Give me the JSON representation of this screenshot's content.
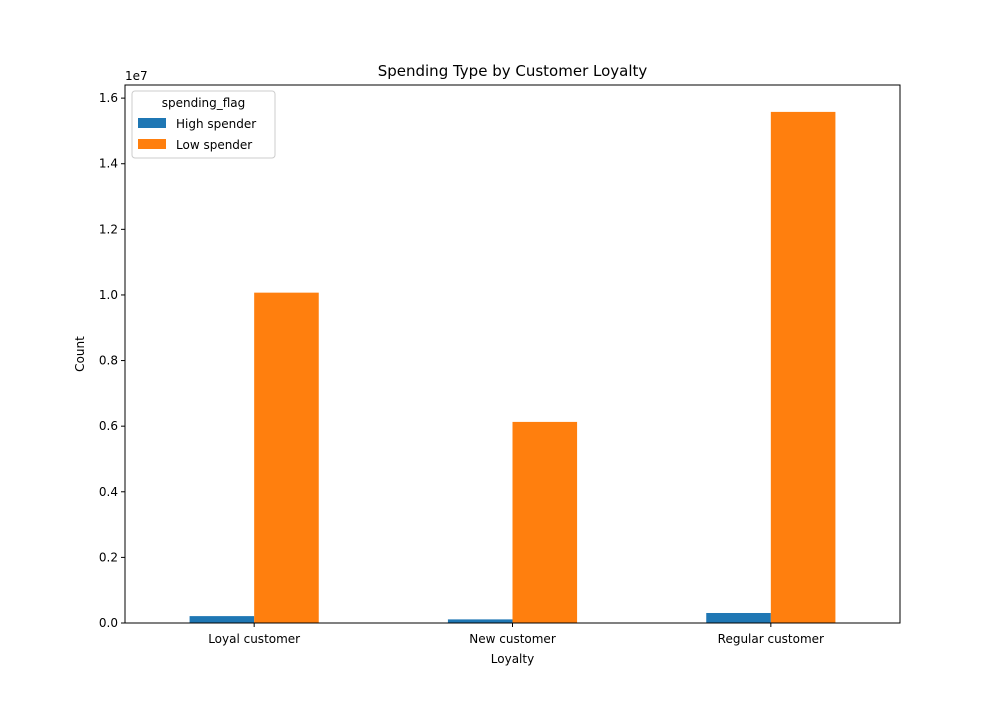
{
  "chart_data": {
    "type": "bar",
    "title": "Spending Type by Customer Loyalty",
    "xlabel": "Loyalty",
    "ylabel": "Count",
    "y_multiplier_label": "1e7",
    "y_multiplier": 10000000,
    "categories": [
      "Loyal customer",
      "New customer",
      "Regular customer"
    ],
    "series": [
      {
        "name": "High spender",
        "color": "#1f77b4",
        "values": [
          210000,
          110000,
          305000
        ]
      },
      {
        "name": "Low spender",
        "color": "#ff7f0e",
        "values": [
          10070000,
          6130000,
          15580000
        ]
      }
    ],
    "ylim": [
      0,
      16400000
    ],
    "yticks": [
      0,
      2000000,
      4000000,
      6000000,
      8000000,
      10000000,
      12000000,
      14000000,
      16000000
    ],
    "ytick_labels": [
      "0.0",
      "0.2",
      "0.4",
      "0.6",
      "0.8",
      "1.0",
      "1.2",
      "1.4",
      "1.6"
    ],
    "legend": {
      "title": "spending_flag",
      "position": "top-left"
    },
    "grid": false
  }
}
